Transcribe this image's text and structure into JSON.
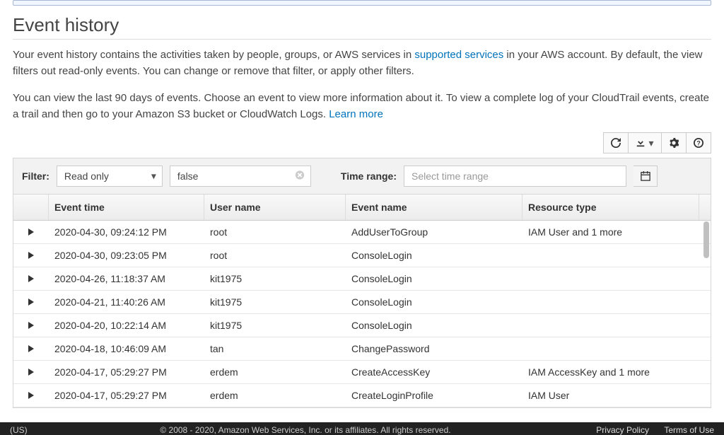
{
  "colors": {
    "link": "#0073bb",
    "border": "#d5d5d5",
    "header_bg_top": "#f9f9f9",
    "header_bg_bottom": "#ececec",
    "filter_bg": "#f2f2f2",
    "footer_bg": "#222222"
  },
  "page_title": "Event history",
  "description": {
    "part1": "Your event history contains the activities taken by people, groups, or AWS services in ",
    "link1": "supported services",
    "part2": " in your AWS account. By default, the view filters out read-only events. You can change or remove that filter, or apply other filters.",
    "para2_part1": "You can view the last 90 days of events. Choose an event to view more information about it. To view a complete log of your CloudTrail events, create a trail and then go to your Amazon S3 bucket or CloudWatch Logs. ",
    "link2": "Learn more"
  },
  "filter": {
    "label": "Filter:",
    "attribute": "Read only",
    "value": "false",
    "time_label": "Time range:",
    "time_placeholder": "Select time range"
  },
  "columns": {
    "event_time": "Event time",
    "user_name": "User name",
    "event_name": "Event name",
    "resource_type": "Resource type"
  },
  "events": [
    {
      "time": "2020-04-30, 09:24:12 PM",
      "user": "root",
      "event": "AddUserToGroup",
      "resource": "IAM User and 1 more"
    },
    {
      "time": "2020-04-30, 09:23:05 PM",
      "user": "root",
      "event": "ConsoleLogin",
      "resource": ""
    },
    {
      "time": "2020-04-26, 11:18:37 AM",
      "user": "kit1975",
      "event": "ConsoleLogin",
      "resource": ""
    },
    {
      "time": "2020-04-21, 11:40:26 AM",
      "user": "kit1975",
      "event": "ConsoleLogin",
      "resource": ""
    },
    {
      "time": "2020-04-20, 10:22:14 AM",
      "user": "kit1975",
      "event": "ConsoleLogin",
      "resource": ""
    },
    {
      "time": "2020-04-18, 10:46:09 AM",
      "user": "tan",
      "event": "ChangePassword",
      "resource": ""
    },
    {
      "time": "2020-04-17, 05:29:27 PM",
      "user": "erdem",
      "event": "CreateAccessKey",
      "resource": "IAM AccessKey and 1 more"
    },
    {
      "time": "2020-04-17, 05:29:27 PM",
      "user": "erdem",
      "event": "CreateLoginProfile",
      "resource": "IAM User"
    }
  ],
  "footer": {
    "lang": "(US)",
    "copyright": "© 2008 - 2020, Amazon Web Services, Inc. or its affiliates. All rights reserved.",
    "privacy": "Privacy Policy",
    "terms": "Terms of Use"
  }
}
